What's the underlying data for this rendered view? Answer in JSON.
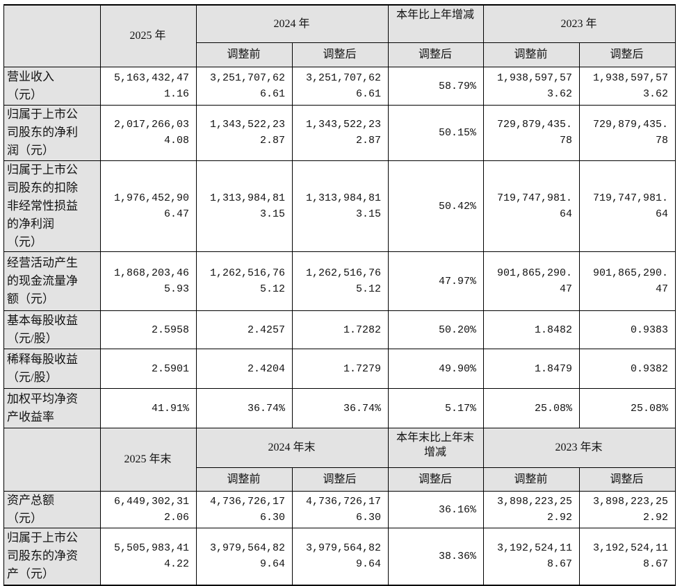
{
  "colors": {
    "header_bg": "#e3e3e3",
    "label_bg": "#e3e3e3",
    "border": "#000000"
  },
  "section1": {
    "header": {
      "col_2025": "2025 年",
      "col_2024": "2024 年",
      "col_change": "本年比上年增减",
      "col_2023": "2023 年",
      "before": "调整前",
      "after": "调整后"
    },
    "rows": [
      {
        "label": [
          "营业收入",
          "（元）"
        ],
        "v2025": "5,163,432,471.16",
        "v2024_before": "3,251,707,626.61",
        "v2024_after": "3,251,707,626.61",
        "change": "58.79%",
        "v2023_before": "1,938,597,573.62",
        "v2023_after": "1,938,597,573.62"
      },
      {
        "label": [
          "归属于上市公",
          "司股东的净利",
          "润（元）"
        ],
        "v2025": "2,017,266,034.08",
        "v2024_before": "1,343,522,232.87",
        "v2024_after": "1,343,522,232.87",
        "change": "50.15%",
        "v2023_before": "729,879,435.78",
        "v2023_after": "729,879,435.78"
      },
      {
        "label": [
          "归属于上市公",
          "司股东的扣除",
          "非经常性损益",
          "的净利润",
          "（元）"
        ],
        "v2025": "1,976,452,906.47",
        "v2024_before": "1,313,984,813.15",
        "v2024_after": "1,313,984,813.15",
        "change": "50.42%",
        "v2023_before": "719,747,981.64",
        "v2023_after": "719,747,981.64"
      },
      {
        "label": [
          "经营活动产生",
          "的现金流量净",
          "额（元）"
        ],
        "v2025": "1,868,203,465.93",
        "v2024_before": "1,262,516,765.12",
        "v2024_after": "1,262,516,765.12",
        "change": "47.97%",
        "v2023_before": "901,865,290.47",
        "v2023_after": "901,865,290.47"
      },
      {
        "label": [
          "基本每股收益",
          "（元/股）"
        ],
        "v2025": "2.5958",
        "v2024_before": "2.4257",
        "v2024_after": "1.7282",
        "change": "50.20%",
        "v2023_before": "1.8482",
        "v2023_after": "0.9383"
      },
      {
        "label": [
          "稀释每股收益",
          "（元/股）"
        ],
        "v2025": "2.5901",
        "v2024_before": "2.4204",
        "v2024_after": "1.7279",
        "change": "49.90%",
        "v2023_before": "1.8479",
        "v2023_after": "0.9382"
      },
      {
        "label": [
          "加权平均净资",
          "产收益率"
        ],
        "v2025": "41.91%",
        "v2024_before": "36.74%",
        "v2024_after": "36.74%",
        "change": "5.17%",
        "v2023_before": "25.08%",
        "v2023_after": "25.08%"
      }
    ]
  },
  "section2": {
    "header": {
      "col_2025": "2025 年末",
      "col_2024": "2024 年末",
      "col_change": "本年末比上年末增减",
      "col_2023": "2023 年末",
      "before": "调整前",
      "after": "调整后"
    },
    "rows": [
      {
        "label": [
          "资产总额",
          "（元）"
        ],
        "v2025": "6,449,302,312.06",
        "v2024_before": "4,736,726,176.30",
        "v2024_after": "4,736,726,176.30",
        "change": "36.16%",
        "v2023_before": "3,898,223,252.92",
        "v2023_after": "3,898,223,252.92"
      },
      {
        "label": [
          "归属于上市公",
          "司股东的净资",
          "产（元）"
        ],
        "v2025": "5,505,983,414.22",
        "v2024_before": "3,979,564,829.64",
        "v2024_after": "3,979,564,829.64",
        "change": "38.36%",
        "v2023_before": "3,192,524,118.67",
        "v2023_after": "3,192,524,118.67"
      }
    ]
  }
}
